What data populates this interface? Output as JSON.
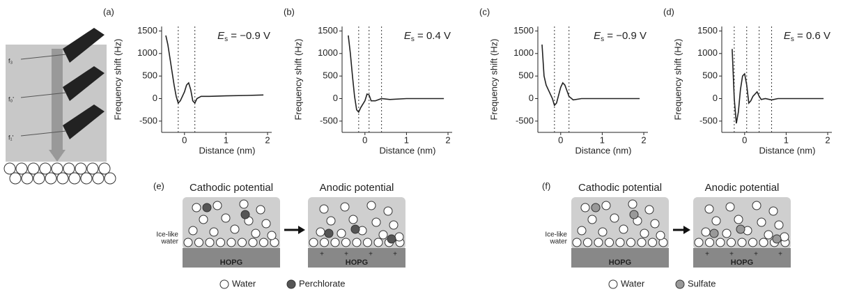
{
  "chart_data": [
    {
      "type": "line",
      "panel": "(a)",
      "xlabel": "Distance (nm)",
      "ylabel": "Frequency shift (Hz)",
      "annotation": [
        "E",
        "s",
        " = −0.9 V"
      ],
      "xlim": [
        -0.55,
        2.1
      ],
      "ylim": [
        -750,
        1600
      ],
      "xticks": [
        0,
        1,
        2
      ],
      "yticks": [
        1500,
        1000,
        500,
        0,
        -500
      ],
      "vlines": [
        -0.15,
        0.25
      ],
      "color": "#222222",
      "x": [
        -0.45,
        -0.4,
        -0.35,
        -0.3,
        -0.25,
        -0.2,
        -0.15,
        -0.1,
        0,
        0.05,
        0.1,
        0.15,
        0.2,
        0.25,
        0.3,
        0.4,
        0.6,
        1.0,
        1.5,
        1.9
      ],
      "values": [
        1400,
        1200,
        900,
        600,
        300,
        50,
        -100,
        -50,
        150,
        300,
        350,
        200,
        -50,
        -100,
        0,
        50,
        50,
        60,
        70,
        80
      ]
    },
    {
      "type": "line",
      "panel": "(b)",
      "xlabel": "Distance (nm)",
      "ylabel": "Frequency shift (Hz)",
      "annotation": [
        "E",
        "s",
        " = 0.4 V"
      ],
      "xlim": [
        -0.55,
        2.1
      ],
      "ylim": [
        -750,
        1600
      ],
      "xticks": [
        0,
        1,
        2
      ],
      "yticks": [
        1500,
        1000,
        500,
        0,
        -500
      ],
      "vlines": [
        -0.15,
        0.1,
        0.4
      ],
      "color": "#222222",
      "x": [
        -0.4,
        -0.35,
        -0.3,
        -0.25,
        -0.2,
        -0.15,
        -0.1,
        0,
        0.05,
        0.1,
        0.15,
        0.25,
        0.4,
        0.6,
        1.0,
        1.5,
        1.9
      ],
      "values": [
        1400,
        1000,
        500,
        50,
        -250,
        -300,
        -200,
        -50,
        100,
        80,
        -50,
        -50,
        0,
        -20,
        0,
        0,
        0
      ]
    },
    {
      "type": "line",
      "panel": "(c)",
      "xlabel": "Distance (nm)",
      "ylabel": "Frequency shift (Hz)",
      "annotation": [
        "E",
        "s",
        " = −0.9 V"
      ],
      "xlim": [
        -0.55,
        2.1
      ],
      "ylim": [
        -750,
        1600
      ],
      "xticks": [
        0,
        1,
        2
      ],
      "yticks": [
        1500,
        1000,
        500,
        0,
        -500
      ],
      "vlines": [
        -0.15,
        0.2
      ],
      "color": "#222222",
      "x": [
        -0.45,
        -0.4,
        -0.35,
        -0.3,
        -0.2,
        -0.15,
        -0.1,
        0,
        0.05,
        0.1,
        0.2,
        0.3,
        0.5,
        1.0,
        1.5,
        1.9
      ],
      "values": [
        1200,
        500,
        300,
        200,
        0,
        -150,
        -100,
        250,
        350,
        300,
        50,
        -30,
        0,
        0,
        0,
        0
      ]
    },
    {
      "type": "line",
      "panel": "(d)",
      "xlabel": "Distance (nm)",
      "ylabel": "Frequency shift (Hz)",
      "annotation": [
        "E",
        "s",
        " = 0.6 V"
      ],
      "xlim": [
        -0.55,
        2.1
      ],
      "ylim": [
        -750,
        1600
      ],
      "xticks": [
        0,
        1,
        2
      ],
      "yticks": [
        1500,
        1000,
        500,
        0,
        -500
      ],
      "vlines": [
        -0.25,
        0.05,
        0.35,
        0.65
      ],
      "color": "#222222",
      "x": [
        -0.3,
        -0.25,
        -0.2,
        -0.15,
        -0.1,
        -0.05,
        0,
        0.05,
        0.1,
        0.15,
        0.2,
        0.3,
        0.35,
        0.4,
        0.5,
        0.65,
        0.8,
        1.0,
        1.5,
        1.9
      ],
      "values": [
        1100,
        0,
        -550,
        -300,
        200,
        500,
        550,
        300,
        -100,
        -50,
        50,
        150,
        50,
        -20,
        0,
        -30,
        0,
        0,
        0,
        0
      ]
    }
  ],
  "illustration": {
    "labels": [
      "f₃",
      "f₀'",
      "f₁'"
    ]
  },
  "diagrams": [
    {
      "panel": "(e)",
      "left_title": "Cathodic potential",
      "right_title": "Anodic potential",
      "side_label": [
        "Ice-like",
        "water"
      ],
      "substrate": "HOPG",
      "plus": "+",
      "legend": [
        "Water",
        "Perchlorate"
      ],
      "ion_color": "#555555"
    },
    {
      "panel": "(f)",
      "left_title": "Cathodic potential",
      "right_title": "Anodic potential",
      "side_label": [
        "Ice-like",
        "water"
      ],
      "substrate": "HOPG",
      "plus": "+",
      "legend": [
        "Water",
        "Sulfate"
      ],
      "ion_color": "#999999"
    }
  ]
}
